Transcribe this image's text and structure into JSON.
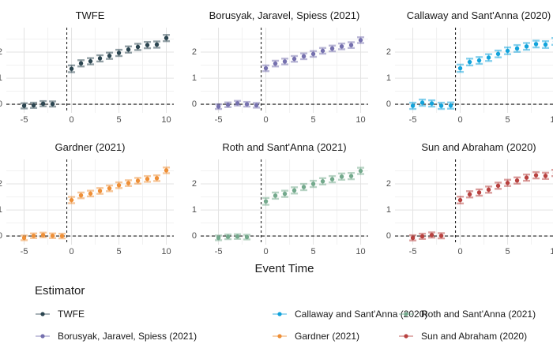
{
  "chart_data": {
    "type": "scatter",
    "description": "Faceted event-study plot: point estimates with error bars by estimator",
    "xlabel": "Event Time",
    "x_ticks": [
      -5,
      0,
      5,
      10
    ],
    "y_ticks": [
      0,
      1,
      2
    ],
    "x_minor": [
      -2.5,
      2.5,
      7.5
    ],
    "y_minor": [
      0.5,
      1.5,
      2.5
    ],
    "xlim": [
      -6.88,
      10.79
    ],
    "ylim": [
      -0.33,
      2.94
    ],
    "hline": 0,
    "vline": -0.5,
    "grid_major_color": "#e3e3e3",
    "grid_minor_color": "#f1f1f1",
    "dash_color": "#222222",
    "legend": {
      "title": "Estimator"
    },
    "facets": [
      {
        "title": "TWFE",
        "color": "#2b4550",
        "x": [
          -5,
          -4,
          -3,
          -2,
          0,
          1,
          2,
          3,
          4,
          5,
          6,
          7,
          8,
          9,
          10
        ],
        "y": [
          -0.06,
          -0.04,
          0.02,
          0.01,
          1.36,
          1.57,
          1.65,
          1.76,
          1.86,
          1.97,
          2.1,
          2.2,
          2.27,
          2.29,
          2.54
        ],
        "e": [
          0.1,
          0.1,
          0.1,
          0.1,
          0.13,
          0.12,
          0.12,
          0.12,
          0.12,
          0.12,
          0.12,
          0.12,
          0.12,
          0.12,
          0.12
        ]
      },
      {
        "title": "Borusyak, Jaravel, Spiess (2021)",
        "color": "#7570ae",
        "x": [
          -5,
          -4,
          -3,
          -2,
          -1,
          0,
          1,
          2,
          3,
          4,
          5,
          6,
          7,
          8,
          9,
          10
        ],
        "y": [
          -0.09,
          -0.02,
          0.04,
          0.0,
          -0.04,
          1.38,
          1.56,
          1.64,
          1.74,
          1.84,
          1.93,
          2.05,
          2.14,
          2.22,
          2.27,
          2.46
        ],
        "e": [
          0.09,
          0.09,
          0.09,
          0.09,
          0.09,
          0.11,
          0.11,
          0.11,
          0.11,
          0.11,
          0.11,
          0.11,
          0.11,
          0.11,
          0.11,
          0.11
        ]
      },
      {
        "title": "Callaway and Sant'Anna (2020)",
        "color": "#12a3db",
        "x": [
          -5,
          -4,
          -3,
          -2,
          -1,
          0,
          1,
          2,
          3,
          4,
          5,
          6,
          7,
          8,
          9,
          10
        ],
        "y": [
          -0.06,
          0.06,
          0.03,
          -0.06,
          -0.05,
          1.38,
          1.62,
          1.68,
          1.79,
          1.93,
          2.05,
          2.14,
          2.22,
          2.31,
          2.29,
          2.41
        ],
        "e": [
          0.12,
          0.12,
          0.12,
          0.12,
          0.12,
          0.14,
          0.13,
          0.13,
          0.13,
          0.13,
          0.13,
          0.13,
          0.13,
          0.13,
          0.13,
          0.13
        ]
      },
      {
        "title": "Gardner (2021)",
        "color": "#ee8f37",
        "x": [
          -5,
          -4,
          -3,
          -2,
          -1,
          0,
          1,
          2,
          3,
          4,
          5,
          6,
          7,
          8,
          9,
          10
        ],
        "y": [
          -0.07,
          0.01,
          0.04,
          0.01,
          0.0,
          1.38,
          1.56,
          1.63,
          1.73,
          1.83,
          1.95,
          2.03,
          2.12,
          2.19,
          2.22,
          2.52
        ],
        "e": [
          0.09,
          0.09,
          0.09,
          0.09,
          0.09,
          0.12,
          0.11,
          0.11,
          0.11,
          0.11,
          0.11,
          0.11,
          0.11,
          0.11,
          0.11,
          0.11
        ]
      },
      {
        "title": "Roth and Sant'Anna (2021)",
        "color": "#73a98c",
        "x": [
          -5,
          -4,
          -3,
          -2,
          0,
          1,
          2,
          3,
          4,
          5,
          6,
          7,
          8,
          9,
          10
        ],
        "y": [
          -0.07,
          -0.03,
          -0.02,
          -0.04,
          1.33,
          1.55,
          1.62,
          1.75,
          1.88,
          2.0,
          2.1,
          2.18,
          2.28,
          2.3,
          2.5
        ],
        "e": [
          0.09,
          0.09,
          0.09,
          0.09,
          0.13,
          0.12,
          0.12,
          0.12,
          0.12,
          0.12,
          0.12,
          0.12,
          0.12,
          0.12,
          0.12
        ]
      },
      {
        "title": "Sun and Abraham (2020)",
        "color": "#b8413f",
        "x": [
          -5,
          -4,
          -3,
          -2,
          0,
          1,
          2,
          3,
          4,
          5,
          6,
          7,
          8,
          9,
          10
        ],
        "y": [
          -0.07,
          -0.01,
          0.04,
          0.01,
          1.38,
          1.6,
          1.67,
          1.78,
          1.93,
          2.04,
          2.13,
          2.24,
          2.33,
          2.31,
          2.42
        ],
        "e": [
          0.1,
          0.1,
          0.1,
          0.1,
          0.13,
          0.12,
          0.12,
          0.12,
          0.12,
          0.12,
          0.12,
          0.12,
          0.12,
          0.12,
          0.12
        ]
      }
    ]
  }
}
